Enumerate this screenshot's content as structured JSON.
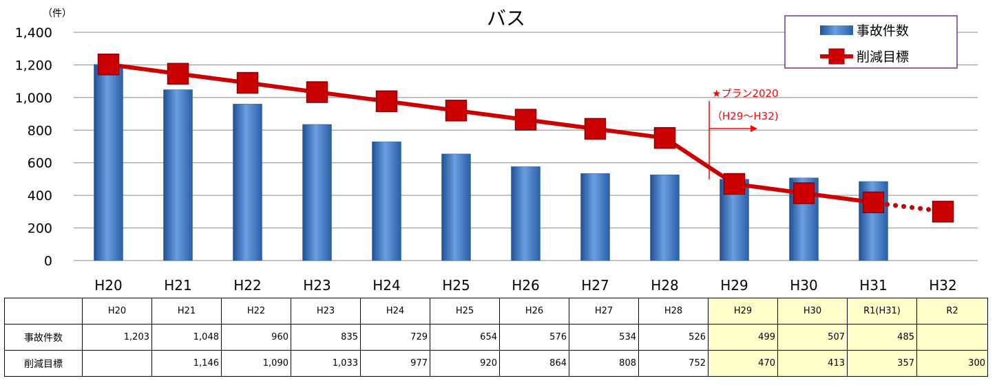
{
  "chart_data": {
    "type": "bar",
    "title": "バス",
    "y_unit": "（件）",
    "ylim": [
      0,
      1400
    ],
    "y_ticks": [
      "0",
      "200",
      "400",
      "600",
      "800",
      "1,000",
      "1,200",
      "1,400"
    ],
    "y_tick_values": [
      0,
      200,
      400,
      600,
      800,
      1000,
      1200,
      1400
    ],
    "categories": [
      "H20",
      "H21",
      "H22",
      "H23",
      "H24",
      "H25",
      "H26",
      "H27",
      "H28",
      "H29",
      "H30",
      "H31",
      "H32"
    ],
    "grid": true,
    "legend_position": "top-right",
    "series": [
      {
        "name": "事故件数",
        "type": "bar",
        "color": "#3a72c0",
        "values": [
          1203,
          1048,
          960,
          835,
          729,
          654,
          576,
          534,
          526,
          499,
          507,
          485,
          null
        ]
      },
      {
        "name": "削減目標",
        "type": "line",
        "color": "#cc0000",
        "marker": "square",
        "values": [
          1203,
          1146,
          1090,
          1033,
          977,
          920,
          864,
          808,
          752,
          470,
          413,
          357,
          300
        ],
        "dotted_last_segment": true
      }
    ],
    "annotation": {
      "line1": "★プラン2020",
      "line2": "（H29〜H32)",
      "at_category": "H29",
      "color": "#ff0000"
    }
  },
  "table": {
    "headers": [
      "",
      "H20",
      "H21",
      "H22",
      "H23",
      "H24",
      "H25",
      "H26",
      "H27",
      "H28",
      "H29",
      "H30",
      "R1(H31)",
      "R2"
    ],
    "rows": [
      {
        "label": "事故件数",
        "cells": [
          "1,203",
          "1,048",
          "960",
          "835",
          "729",
          "654",
          "576",
          "534",
          "526",
          "499",
          "507",
          "485",
          ""
        ]
      },
      {
        "label": "削減目標",
        "cells": [
          "",
          "1,146",
          "1,090",
          "1,033",
          "977",
          "920",
          "864",
          "808",
          "752",
          "470",
          "413",
          "357",
          "300"
        ]
      }
    ],
    "highlight_from_col": 9,
    "highlight_color": "#ffffcc"
  }
}
